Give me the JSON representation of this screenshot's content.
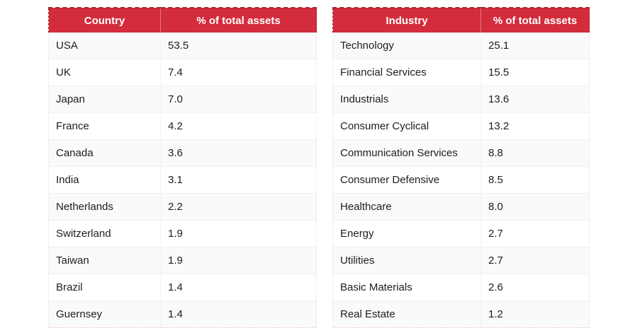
{
  "tables": [
    {
      "name": "country-allocation-table",
      "columns": [
        "Country",
        "% of total assets"
      ],
      "rows": [
        [
          "USA",
          "53.5"
        ],
        [
          "UK",
          "7.4"
        ],
        [
          "Japan",
          "7.0"
        ],
        [
          "France",
          "4.2"
        ],
        [
          "Canada",
          "3.6"
        ],
        [
          "India",
          "3.1"
        ],
        [
          "Netherlands",
          "2.2"
        ],
        [
          "Switzerland",
          "1.9"
        ],
        [
          "Taiwan",
          "1.9"
        ],
        [
          "Brazil",
          "1.4"
        ],
        [
          "Guernsey",
          "1.4"
        ]
      ]
    },
    {
      "name": "industry-allocation-table",
      "columns": [
        "Industry",
        "% of total assets"
      ],
      "rows": [
        [
          "Technology",
          "25.1"
        ],
        [
          "Financial Services",
          "15.5"
        ],
        [
          "Industrials",
          "13.6"
        ],
        [
          "Consumer Cyclical",
          "13.2"
        ],
        [
          "Communication Services",
          "8.8"
        ],
        [
          "Consumer Defensive",
          "8.5"
        ],
        [
          "Healthcare",
          "8.0"
        ],
        [
          "Energy",
          "2.7"
        ],
        [
          "Utilities",
          "2.7"
        ],
        [
          "Basic Materials",
          "2.6"
        ],
        [
          "Real Estate",
          "1.2"
        ]
      ]
    }
  ],
  "theme": {
    "header_background": "#d32c3c",
    "header_border": "#a8202e",
    "header_text_color": "#ffffff",
    "row_stripe_color": "#f9fafb",
    "body_text_color": "#1d1d1f"
  },
  "chart_data": [
    {
      "type": "table",
      "title": "Country % of total assets",
      "columns": [
        "Country",
        "% of total assets"
      ],
      "categories": [
        "USA",
        "UK",
        "Japan",
        "France",
        "Canada",
        "India",
        "Netherlands",
        "Switzerland",
        "Taiwan",
        "Brazil",
        "Guernsey"
      ],
      "values": [
        53.5,
        7.4,
        7.0,
        4.2,
        3.6,
        3.1,
        2.2,
        1.9,
        1.9,
        1.4,
        1.4
      ]
    },
    {
      "type": "table",
      "title": "Industry % of total assets",
      "columns": [
        "Industry",
        "% of total assets"
      ],
      "categories": [
        "Technology",
        "Financial Services",
        "Industrials",
        "Consumer Cyclical",
        "Communication Services",
        "Consumer Defensive",
        "Healthcare",
        "Energy",
        "Utilities",
        "Basic Materials",
        "Real Estate"
      ],
      "values": [
        25.1,
        15.5,
        13.6,
        13.2,
        8.8,
        8.5,
        8.0,
        2.7,
        2.7,
        2.6,
        1.2
      ]
    }
  ]
}
